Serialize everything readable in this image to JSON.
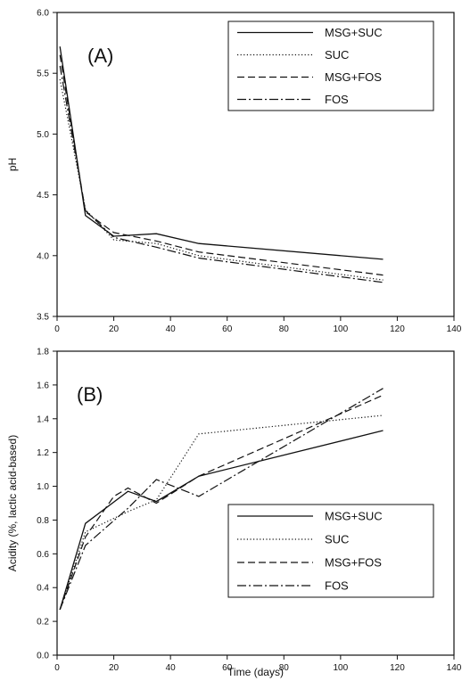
{
  "chart_data": [
    {
      "type": "line",
      "panel_label": "(A)",
      "xlabel": "",
      "ylabel": "pH",
      "xlim": [
        0,
        140
      ],
      "ylim": [
        3.5,
        6.0
      ],
      "xticks": [
        0,
        20,
        40,
        60,
        80,
        100,
        120,
        140
      ],
      "yticks": [
        3.5,
        4.0,
        4.5,
        5.0,
        5.5,
        6.0
      ],
      "grid": false,
      "legend_position": "top-right",
      "series": [
        {
          "name": "MSG+SUC",
          "style": "solid",
          "x": [
            1,
            10,
            20,
            35,
            50,
            115
          ],
          "y": [
            5.72,
            4.33,
            4.16,
            4.18,
            4.1,
            3.97
          ]
        },
        {
          "name": "SUC",
          "style": "dotted",
          "x": [
            1,
            10,
            20,
            35,
            50,
            115
          ],
          "y": [
            5.45,
            4.38,
            4.13,
            4.1,
            4.0,
            3.8
          ]
        },
        {
          "name": "MSG+FOS",
          "style": "dashed",
          "x": [
            1,
            10,
            20,
            35,
            50,
            115
          ],
          "y": [
            5.65,
            4.36,
            4.19,
            4.12,
            4.03,
            3.84
          ]
        },
        {
          "name": "FOS",
          "style": "dashdot",
          "x": [
            1,
            10,
            20,
            35,
            50,
            115
          ],
          "y": [
            5.56,
            4.37,
            4.15,
            4.07,
            3.98,
            3.78
          ]
        }
      ]
    },
    {
      "type": "line",
      "panel_label": "(B)",
      "xlabel": "Time (days)",
      "ylabel": "Acidity (%, lactic acid-based)",
      "xlim": [
        0,
        140
      ],
      "ylim": [
        0.0,
        1.8
      ],
      "xticks": [
        0,
        20,
        40,
        60,
        80,
        100,
        120,
        140
      ],
      "yticks": [
        0.0,
        0.2,
        0.4,
        0.6,
        0.8,
        1.0,
        1.2,
        1.4,
        1.6,
        1.8
      ],
      "grid": false,
      "legend_position": "bottom-right",
      "series": [
        {
          "name": "MSG+SUC",
          "style": "solid",
          "x": [
            1,
            10,
            25,
            35,
            50,
            115
          ],
          "y": [
            0.27,
            0.78,
            0.97,
            0.91,
            1.06,
            1.33
          ]
        },
        {
          "name": "SUC",
          "style": "dotted",
          "x": [
            1,
            10,
            25,
            35,
            50,
            115
          ],
          "y": [
            0.27,
            0.73,
            0.85,
            0.92,
            1.31,
            1.42
          ]
        },
        {
          "name": "MSG+FOS",
          "style": "dashed",
          "x": [
            1,
            10,
            20,
            25,
            35,
            50,
            115
          ],
          "y": [
            0.27,
            0.7,
            0.94,
            0.99,
            0.9,
            1.06,
            1.54
          ]
        },
        {
          "name": "FOS",
          "style": "dashdot",
          "x": [
            1,
            10,
            25,
            35,
            50,
            115
          ],
          "y": [
            0.27,
            0.65,
            0.87,
            1.04,
            0.94,
            1.58
          ]
        }
      ]
    }
  ]
}
